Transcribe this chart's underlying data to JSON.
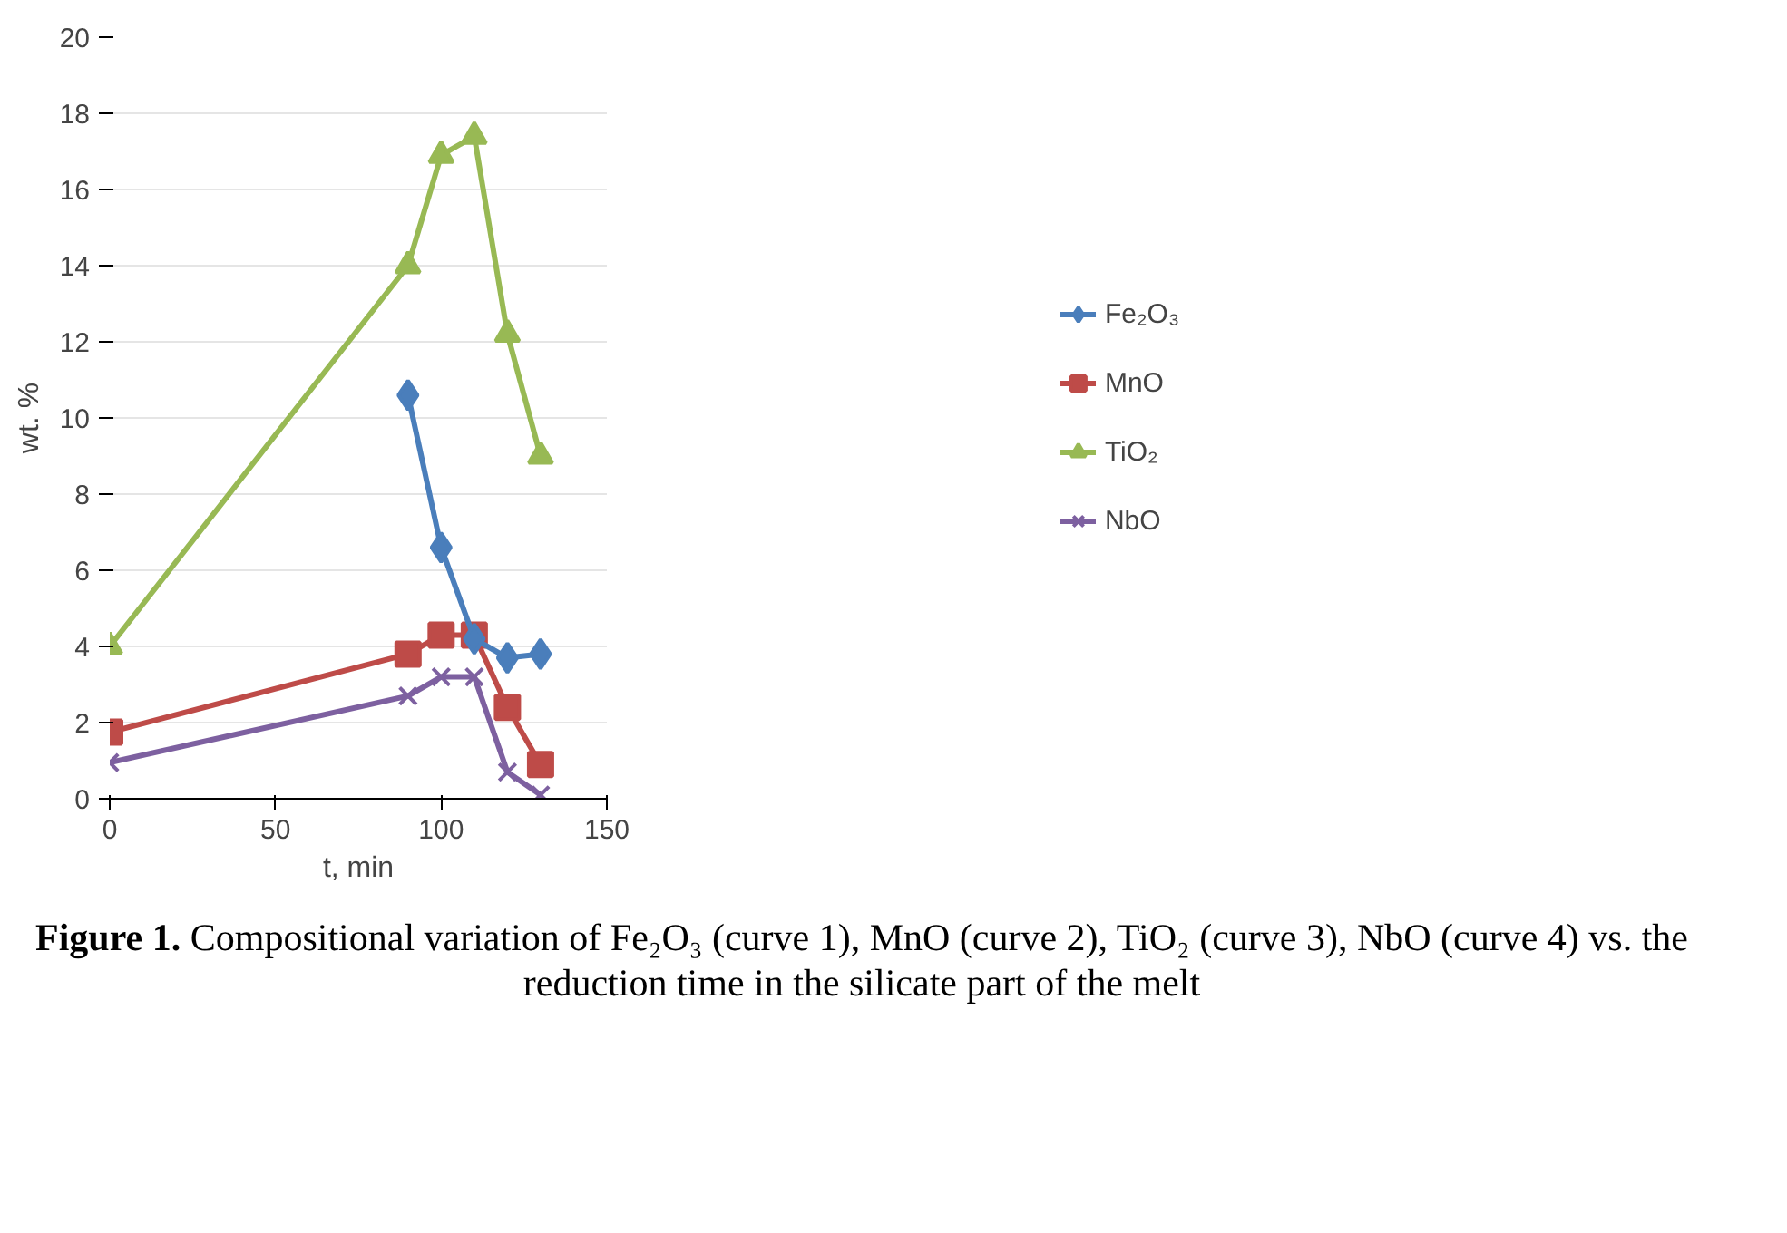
{
  "chart_data": {
    "type": "line",
    "xlabel": "t, min",
    "ylabel": "wt. %",
    "x": [
      0,
      90,
      100,
      110,
      120,
      130
    ],
    "series": [
      {
        "name": "Fe₂O₃",
        "color": "#4a7ebb",
        "marker": "diamond",
        "x": [
          90,
          100,
          110,
          120,
          130
        ],
        "values": [
          10.6,
          6.6,
          4.2,
          3.7,
          3.8
        ]
      },
      {
        "name": "MnO",
        "color": "#be4b48",
        "marker": "square",
        "values": [
          1.75,
          3.8,
          4.3,
          4.3,
          2.4,
          0.9
        ]
      },
      {
        "name": "TiO₂",
        "color": "#98b954",
        "marker": "triangle",
        "values": [
          4.0,
          14.0,
          16.9,
          17.4,
          12.2,
          9.0
        ]
      },
      {
        "name": "NbO",
        "color": "#7d60a0",
        "marker": "cross",
        "values": [
          0.95,
          2.7,
          3.2,
          3.2,
          0.7,
          0.1
        ]
      }
    ],
    "xlim": [
      0,
      150
    ],
    "xticks": [
      0,
      50,
      100,
      150
    ],
    "ylim": [
      0,
      20
    ],
    "yticks": [
      0,
      2,
      4,
      6,
      8,
      10,
      12,
      14,
      16,
      18,
      20
    ],
    "grid": "y",
    "legend": "right",
    "annotations": [
      "Figure 1.",
      "Compositional variation of  Fe₂O₃ (curve 1), MnO (curve 2), TiO₂ (curve 3), NbO (curve 4) vs. the reduction time in the silicate part of the melt"
    ]
  }
}
